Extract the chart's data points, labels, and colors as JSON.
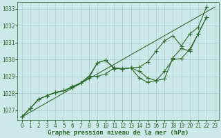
{
  "background_color": "#cce8e8",
  "grid_color": "#aacece",
  "line_color": "#2d6b2d",
  "marker_color": "#2d6b2d",
  "xlabel": "Graphe pression niveau de la mer (hPa)",
  "xlabel_color": "#2d6b2d",
  "tick_color": "#2d6b2d",
  "xlim": [
    -0.5,
    23.5
  ],
  "ylim": [
    1026.4,
    1033.4
  ],
  "yticks": [
    1027,
    1028,
    1029,
    1030,
    1031,
    1032,
    1033
  ],
  "xticks": [
    0,
    1,
    2,
    3,
    4,
    5,
    6,
    7,
    8,
    9,
    10,
    11,
    12,
    13,
    14,
    15,
    16,
    17,
    18,
    19,
    20,
    21,
    22,
    23
  ],
  "fontsize_xlabel": 6.5,
  "fontsize_tick": 5.5,
  "series_plain": [
    [
      0,
      1026.6
    ],
    [
      23,
      1033.1
    ]
  ],
  "series_with_markers": [
    [
      [
        0,
        1026.6
      ],
      [
        1,
        1027.1
      ],
      [
        2,
        1027.65
      ],
      [
        3,
        1027.85
      ],
      [
        4,
        1028.05
      ],
      [
        5,
        1028.15
      ],
      [
        6,
        1028.35
      ],
      [
        7,
        1028.6
      ],
      [
        8,
        1029.0
      ],
      [
        9,
        1029.8
      ],
      [
        10,
        1029.95
      ],
      [
        11,
        1029.5
      ],
      [
        12,
        1029.45
      ],
      [
        13,
        1029.5
      ],
      [
        14,
        1028.9
      ],
      [
        15,
        1028.65
      ],
      [
        16,
        1028.75
      ],
      [
        17,
        1029.3
      ],
      [
        18,
        1030.0
      ],
      [
        19,
        1030.05
      ],
      [
        20,
        1030.6
      ],
      [
        21,
        1031.5
      ],
      [
        22,
        1032.5
      ]
    ],
    [
      [
        0,
        1026.6
      ],
      [
        1,
        1027.1
      ],
      [
        2,
        1027.65
      ],
      [
        3,
        1027.85
      ],
      [
        4,
        1028.05
      ],
      [
        5,
        1028.15
      ],
      [
        6,
        1028.4
      ],
      [
        7,
        1028.6
      ],
      [
        8,
        1028.9
      ],
      [
        9,
        1029.8
      ],
      [
        10,
        1029.95
      ],
      [
        11,
        1029.45
      ],
      [
        12,
        1029.45
      ],
      [
        13,
        1029.5
      ],
      [
        14,
        1029.3
      ],
      [
        15,
        1028.9
      ],
      [
        16,
        1028.75
      ],
      [
        17,
        1028.85
      ],
      [
        18,
        1030.1
      ],
      [
        19,
        1030.65
      ],
      [
        20,
        1030.5
      ],
      [
        21,
        1031.5
      ],
      [
        22,
        1032.5
      ]
    ],
    [
      [
        0,
        1026.6
      ],
      [
        1,
        1027.1
      ],
      [
        2,
        1027.65
      ],
      [
        3,
        1027.85
      ],
      [
        4,
        1028.05
      ],
      [
        5,
        1028.15
      ],
      [
        6,
        1028.35
      ],
      [
        7,
        1028.6
      ],
      [
        8,
        1029.0
      ],
      [
        9,
        1029.0
      ],
      [
        10,
        1029.15
      ],
      [
        11,
        1029.5
      ],
      [
        12,
        1029.45
      ],
      [
        13,
        1029.5
      ],
      [
        14,
        1029.55
      ],
      [
        15,
        1029.85
      ],
      [
        16,
        1030.5
      ],
      [
        17,
        1031.1
      ],
      [
        18,
        1031.4
      ],
      [
        19,
        1030.8
      ],
      [
        20,
        1031.5
      ],
      [
        21,
        1031.9
      ],
      [
        22,
        1033.1
      ]
    ]
  ]
}
